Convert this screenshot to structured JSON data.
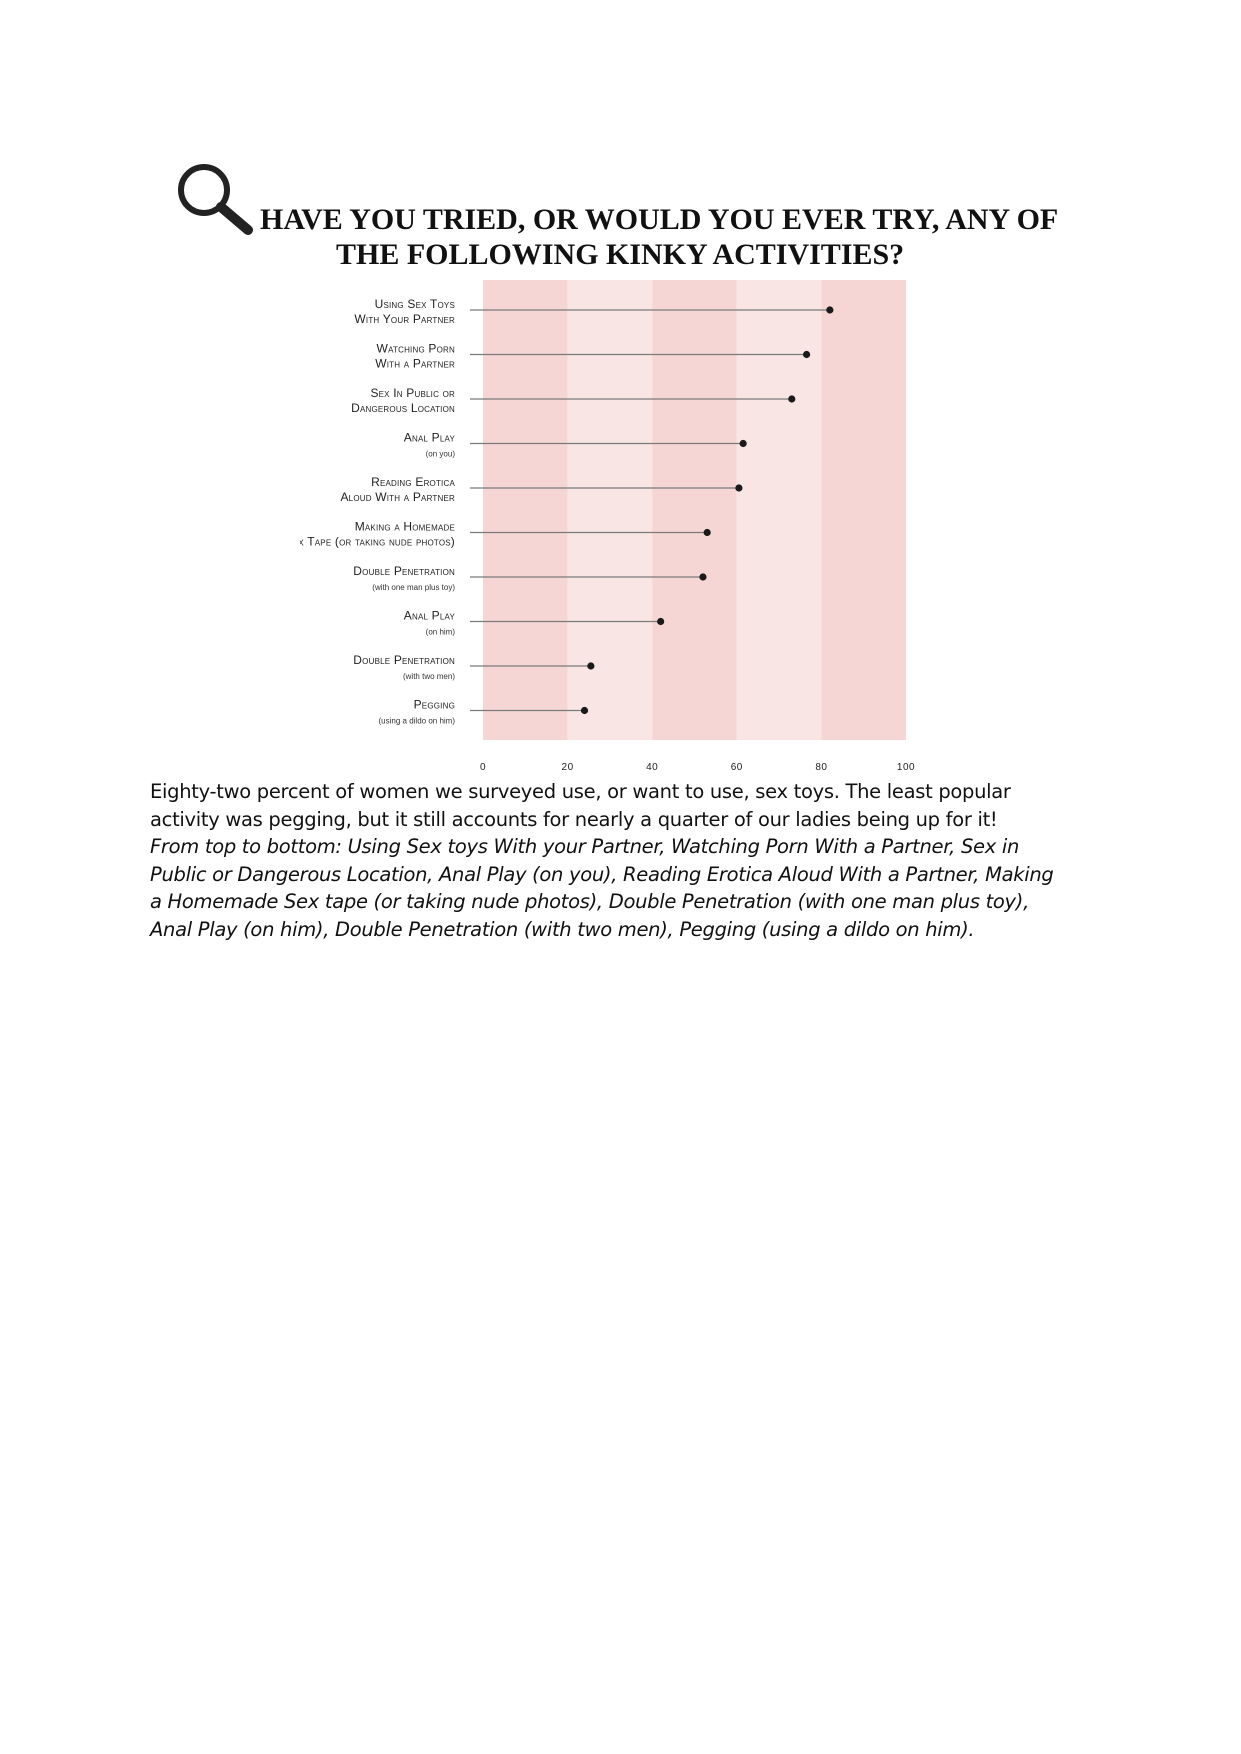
{
  "title": {
    "line1": "HAVE YOU TRIED, OR WOULD YOU EVER TRY, ANY OF",
    "line2": "THE FOLLOWING KINKY ACTIVITIES?",
    "icon": "search-icon"
  },
  "chart_data": {
    "type": "lollipop",
    "xlim": [
      0,
      100
    ],
    "xticks": [
      "0",
      "20",
      "40",
      "60",
      "80",
      "100"
    ],
    "band_colors": [
      "#f6d6d4",
      "#f9e6e4"
    ],
    "categories": [
      {
        "label_lines": [
          "Using Sex Toys",
          "With Your Partner"
        ],
        "value": 82
      },
      {
        "label_lines": [
          "Watching Porn",
          "With a Partner"
        ],
        "value": 76.5
      },
      {
        "label_lines": [
          "Sex In Public or",
          "Dangerous Location"
        ],
        "value": 73
      },
      {
        "label_lines": [
          "Anal Play",
          "(on you)"
        ],
        "value": 61.5
      },
      {
        "label_lines": [
          "Reading Erotica",
          "Aloud With a Partner"
        ],
        "value": 60.5
      },
      {
        "label_lines": [
          "Making a Homemade",
          "Sex Tape (or taking nude photos)"
        ],
        "value": 53
      },
      {
        "label_lines": [
          "Double Penetration",
          "(with one man plus toy)"
        ],
        "value": 52
      },
      {
        "label_lines": [
          "Anal Play",
          "(on him)"
        ],
        "value": 42
      },
      {
        "label_lines": [
          "Double Penetration",
          "(with two men)"
        ],
        "value": 25.5
      },
      {
        "label_lines": [
          "Pegging",
          "(using a dildo on him)"
        ],
        "value": 24
      }
    ]
  },
  "caption": {
    "summary": "Eighty-two percent of women we surveyed use, or want to use, sex toys. The least popular activity was pegging, but it still accounts for nearly a quarter of our ladies being up for it!",
    "description": "From top to bottom: Using Sex toys With your Partner, Watching Porn With a Partner, Sex in Public or Dangerous Location, Anal Play (on you), Reading Erotica Aloud With a Partner, Making a Homemade Sex tape (or taking nude photos), Double Penetration (with one man plus toy), Anal Play (on him), Double Penetration (with two men), Pegging (using a dildo on him)."
  }
}
